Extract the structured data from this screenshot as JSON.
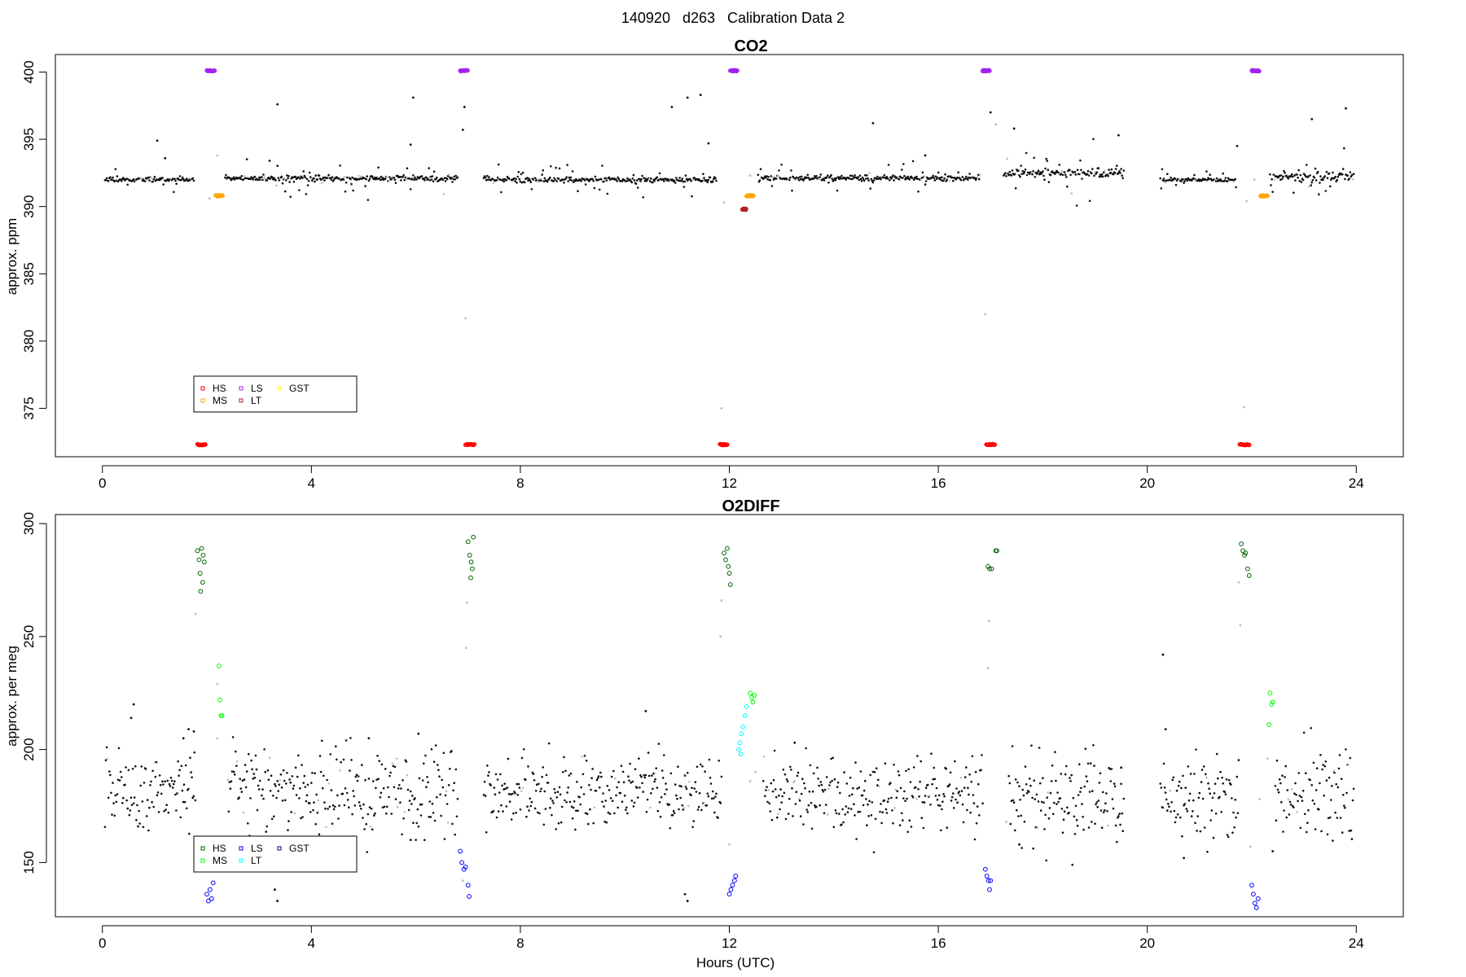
{
  "figure": {
    "title": "140920   d263   Calibration Data 2",
    "xlabel": "Hours (UTC)"
  },
  "chart_data": [
    {
      "type": "scatter",
      "title": "CO2",
      "xlabel": "",
      "ylabel": "approx. ppm",
      "xlim": [
        -0.9,
        24.9
      ],
      "ylim": [
        371.4,
        401.3
      ],
      "x_ticks": [
        0,
        4,
        8,
        12,
        16,
        20,
        24
      ],
      "y_ticks": [
        375,
        380,
        385,
        390,
        395,
        400
      ],
      "grid": false,
      "legend": {
        "position": "bottom-left",
        "entries": [
          {
            "label": "HS",
            "color": "#ff0000"
          },
          {
            "label": "MS",
            "color": "#ffa500"
          },
          {
            "label": "LS",
            "color": "#a020f0"
          },
          {
            "label": "LT",
            "color": "#b22222"
          },
          {
            "label": "GST",
            "color": "#ffff00"
          }
        ]
      },
      "calibration_runs": [
        {
          "name": "HS",
          "color": "#ff0000",
          "y": 372.3,
          "x_ranges": [
            [
              1.82,
              1.97
            ],
            [
              6.95,
              7.12
            ],
            [
              11.82,
              11.96
            ],
            [
              16.92,
              17.08
            ],
            [
              21.77,
              21.95
            ]
          ]
        },
        {
          "name": "LS",
          "color": "#a020f0",
          "y": 400.1,
          "x_ranges": [
            [
              2.0,
              2.15
            ],
            [
              6.85,
              6.99
            ],
            [
              12.02,
              12.15
            ],
            [
              16.85,
              16.98
            ],
            [
              22.0,
              22.14
            ]
          ]
        },
        {
          "name": "MS",
          "color": "#ffa500",
          "y": 390.8,
          "x_ranges": [
            [
              2.17,
              2.3
            ],
            [
              12.33,
              12.46
            ],
            [
              22.17,
              22.3
            ]
          ]
        },
        {
          "name": "LT",
          "color": "#b22222",
          "y": 389.8,
          "x_ranges": [
            [
              12.25,
              12.32
            ]
          ]
        }
      ],
      "ambient_segments": [
        {
          "x": [
            0.05,
            1.75
          ],
          "base": 392.0,
          "noise": 0.35
        },
        {
          "x": [
            2.35,
            6.8
          ],
          "base": 392.1,
          "noise": 0.45
        },
        {
          "x": [
            7.3,
            11.75
          ],
          "base": 392.0,
          "noise": 0.4
        },
        {
          "x": [
            12.55,
            16.8
          ],
          "base": 392.1,
          "noise": 0.4
        },
        {
          "x": [
            17.25,
            19.55
          ],
          "base": 392.5,
          "noise": 0.7
        },
        {
          "x": [
            20.25,
            21.7
          ],
          "base": 392.0,
          "noise": 0.35
        },
        {
          "x": [
            22.35,
            23.95
          ],
          "base": 392.2,
          "noise": 0.8
        }
      ],
      "ambient_outliers": [
        [
          1.05,
          394.9
        ],
        [
          1.2,
          393.6
        ],
        [
          3.35,
          397.6
        ],
        [
          3.2,
          393.4
        ],
        [
          5.95,
          398.1
        ],
        [
          5.9,
          394.6
        ],
        [
          6.9,
          395.7
        ],
        [
          6.93,
          397.4
        ],
        [
          10.9,
          397.4
        ],
        [
          11.2,
          398.1
        ],
        [
          11.45,
          398.3
        ],
        [
          11.6,
          394.7
        ],
        [
          14.75,
          396.2
        ],
        [
          15.75,
          393.8
        ],
        [
          17.0,
          397.0
        ],
        [
          17.45,
          395.8
        ],
        [
          19.45,
          395.3
        ],
        [
          21.72,
          394.5
        ],
        [
          23.15,
          396.5
        ],
        [
          23.8,
          397.3
        ]
      ],
      "transition_points": [
        [
          2.2,
          393.8
        ],
        [
          2.05,
          390.6
        ],
        [
          6.95,
          381.7
        ],
        [
          11.85,
          375.0
        ],
        [
          11.9,
          390.3
        ],
        [
          12.4,
          392.3
        ],
        [
          16.9,
          382.0
        ],
        [
          17.1,
          396.1
        ],
        [
          21.85,
          375.1
        ],
        [
          21.9,
          390.4
        ],
        [
          22.05,
          392.0
        ]
      ]
    },
    {
      "type": "scatter",
      "title": "O2DIFF",
      "xlabel": "Hours (UTC)",
      "ylabel": "approx. per meg",
      "xlim": [
        -0.9,
        24.9
      ],
      "ylim": [
        126,
        304
      ],
      "x_ticks": [
        0,
        4,
        8,
        12,
        16,
        20,
        24
      ],
      "y_ticks": [
        150,
        200,
        250,
        300
      ],
      "grid": false,
      "legend": {
        "position": "bottom-left",
        "entries": [
          {
            "label": "HS",
            "color": "#006400"
          },
          {
            "label": "MS",
            "color": "#00ff00"
          },
          {
            "label": "LS",
            "color": "#0000ff"
          },
          {
            "label": "LT",
            "color": "#00ffff"
          },
          {
            "label": "GST",
            "color": "#00008b"
          }
        ]
      },
      "calibration_points": [
        {
          "name": "HS",
          "color": "#006400",
          "points": [
            [
              1.82,
              288
            ],
            [
              1.85,
              284
            ],
            [
              1.87,
              278
            ],
            [
              1.9,
              289
            ],
            [
              1.92,
              274
            ],
            [
              1.88,
              270
            ],
            [
              1.93,
              286
            ],
            [
              1.95,
              283
            ],
            [
              7.0,
              292
            ],
            [
              7.03,
              286
            ],
            [
              7.06,
              283
            ],
            [
              7.08,
              280
            ],
            [
              7.05,
              276
            ],
            [
              7.1,
              294
            ],
            [
              11.9,
              287
            ],
            [
              11.93,
              284
            ],
            [
              11.96,
              289
            ],
            [
              11.98,
              281
            ],
            [
              12.0,
              278
            ],
            [
              12.02,
              273
            ],
            [
              16.95,
              281
            ],
            [
              16.98,
              280
            ],
            [
              17.02,
              280
            ],
            [
              17.1,
              288
            ],
            [
              17.12,
              288
            ],
            [
              21.8,
              291
            ],
            [
              21.83,
              288
            ],
            [
              21.86,
              286
            ],
            [
              21.88,
              287
            ],
            [
              21.92,
              280
            ],
            [
              21.95,
              277
            ]
          ]
        },
        {
          "name": "LS",
          "color": "#0000ff",
          "points": [
            [
              2.0,
              136
            ],
            [
              2.03,
              133
            ],
            [
              2.06,
              138
            ],
            [
              2.09,
              134
            ],
            [
              2.12,
              141
            ],
            [
              2.05,
              147
            ],
            [
              6.85,
              155
            ],
            [
              6.88,
              150
            ],
            [
              6.92,
              147
            ],
            [
              6.95,
              148
            ],
            [
              7.0,
              140
            ],
            [
              7.02,
              135
            ],
            [
              12.0,
              136
            ],
            [
              12.03,
              138
            ],
            [
              12.06,
              140
            ],
            [
              12.1,
              142
            ],
            [
              12.12,
              144
            ],
            [
              16.9,
              147
            ],
            [
              16.93,
              144
            ],
            [
              16.96,
              142
            ],
            [
              16.98,
              138
            ],
            [
              17.0,
              142
            ],
            [
              22.0,
              140
            ],
            [
              22.03,
              136
            ],
            [
              22.06,
              132
            ],
            [
              22.09,
              130
            ],
            [
              22.12,
              134
            ]
          ]
        },
        {
          "name": "MS",
          "color": "#00ff00",
          "points": [
            [
              2.23,
              237
            ],
            [
              2.25,
              222
            ],
            [
              2.27,
              215
            ],
            [
              2.29,
              215
            ],
            [
              12.4,
              225
            ],
            [
              12.43,
              223
            ],
            [
              12.45,
              221
            ],
            [
              12.48,
              224
            ],
            [
              22.35,
              225
            ],
            [
              22.38,
              220
            ],
            [
              22.4,
              221
            ],
            [
              22.33,
              211
            ]
          ]
        },
        {
          "name": "LT",
          "color": "#00ffff",
          "points": [
            [
              12.18,
              200
            ],
            [
              12.2,
              203
            ],
            [
              12.23,
              207
            ],
            [
              12.26,
              210
            ],
            [
              12.22,
              198
            ],
            [
              12.3,
              215
            ],
            [
              12.33,
              219
            ]
          ]
        }
      ],
      "ambient_segments": [
        {
          "x": [
            0.05,
            1.78
          ],
          "base": 182,
          "noise": 9
        },
        {
          "x": [
            2.4,
            6.8
          ],
          "base": 182,
          "noise": 10
        },
        {
          "x": [
            7.3,
            11.85
          ],
          "base": 181,
          "noise": 8
        },
        {
          "x": [
            12.65,
            16.85
          ],
          "base": 180,
          "noise": 8
        },
        {
          "x": [
            17.35,
            19.55
          ],
          "base": 178,
          "noise": 9
        },
        {
          "x": [
            20.25,
            21.75
          ],
          "base": 180,
          "noise": 9
        },
        {
          "x": [
            22.45,
            23.95
          ],
          "base": 178,
          "noise": 10
        }
      ],
      "ambient_outliers": [
        [
          0.6,
          220
        ],
        [
          0.55,
          214
        ],
        [
          1.55,
          205
        ],
        [
          1.65,
          209
        ],
        [
          1.75,
          208
        ],
        [
          3.35,
          133
        ],
        [
          3.3,
          138
        ],
        [
          5.1,
          205
        ],
        [
          6.05,
          207
        ],
        [
          5.9,
          160
        ],
        [
          10.4,
          217
        ],
        [
          11.15,
          136
        ],
        [
          11.2,
          133
        ],
        [
          13.25,
          203
        ],
        [
          17.55,
          158
        ],
        [
          19.5,
          192
        ],
        [
          20.3,
          242
        ],
        [
          20.35,
          209
        ],
        [
          20.7,
          152
        ],
        [
          22.4,
          155
        ]
      ],
      "transition_points": [
        [
          1.78,
          260
        ],
        [
          2.1,
          160
        ],
        [
          2.2,
          229
        ],
        [
          2.2,
          205
        ],
        [
          6.98,
          265
        ],
        [
          6.96,
          245
        ],
        [
          6.9,
          142
        ],
        [
          11.85,
          266
        ],
        [
          11.83,
          250
        ],
        [
          12.0,
          158
        ],
        [
          12.4,
          186
        ],
        [
          12.5,
          190
        ],
        [
          16.97,
          257
        ],
        [
          16.95,
          236
        ],
        [
          17.3,
          168
        ],
        [
          21.75,
          274
        ],
        [
          21.78,
          255
        ],
        [
          21.97,
          157
        ],
        [
          22.3,
          196
        ],
        [
          22.15,
          178
        ]
      ]
    }
  ]
}
